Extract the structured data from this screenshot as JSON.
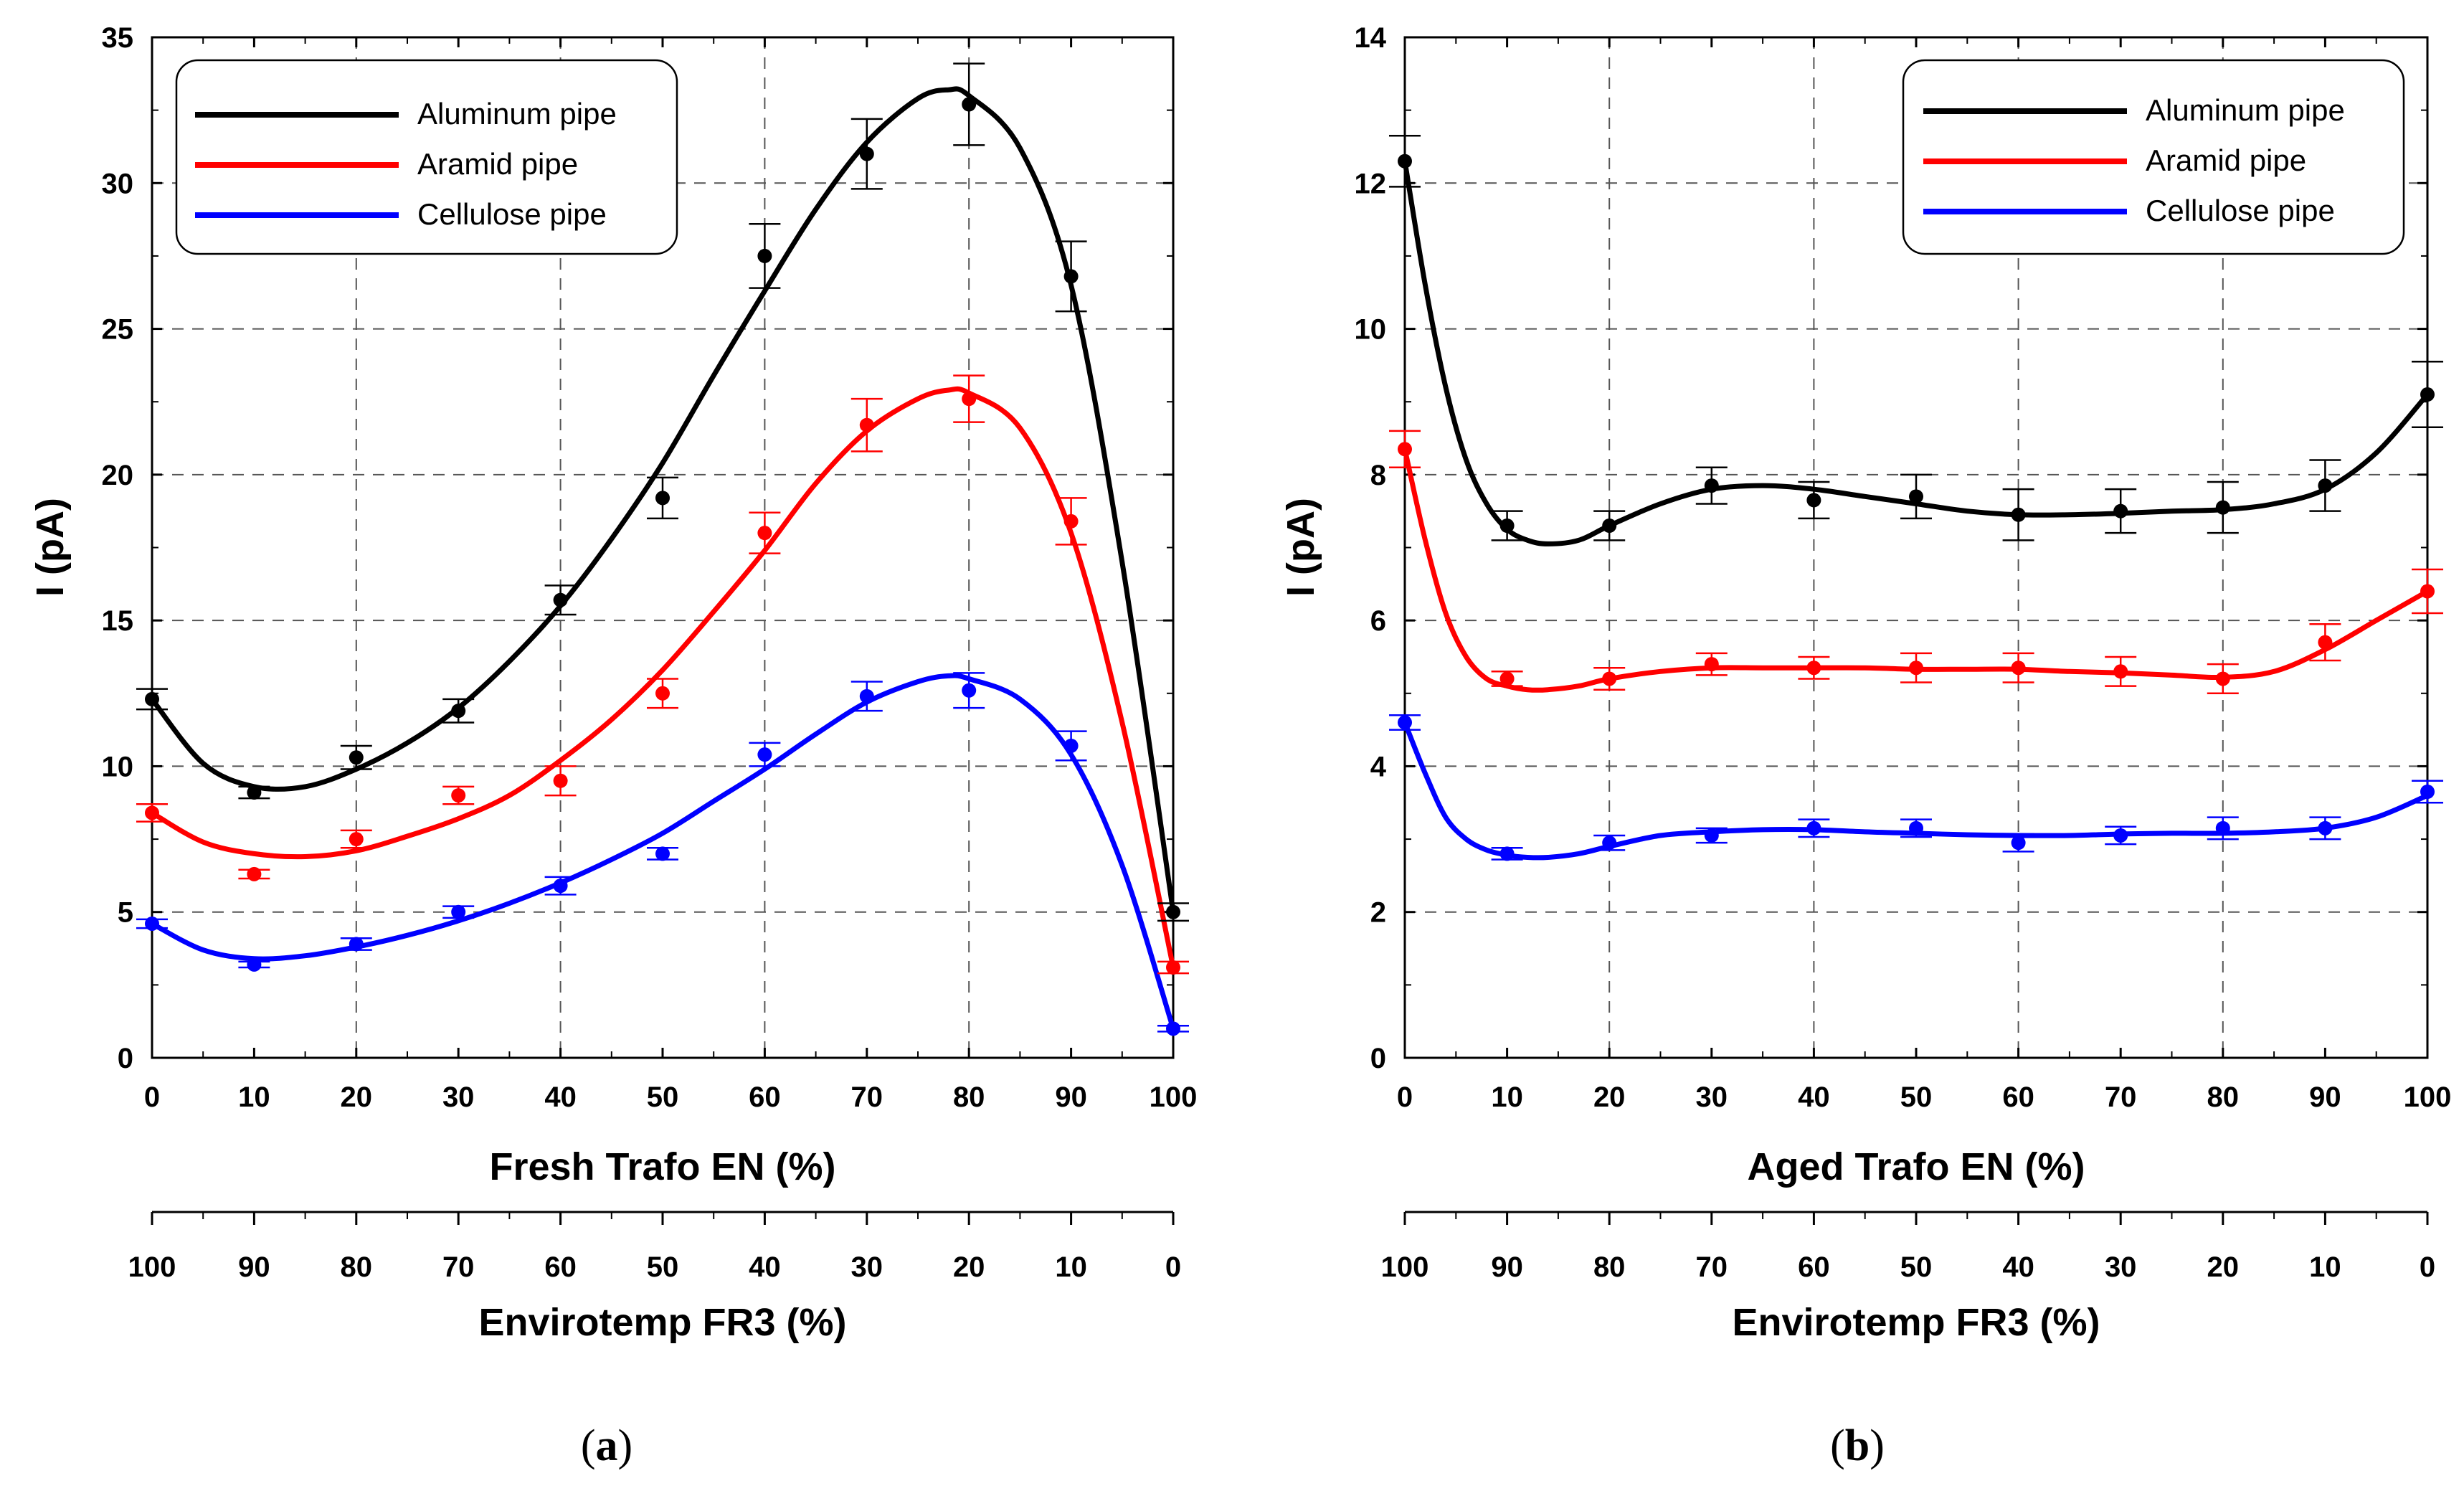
{
  "chart_data": [
    {
      "type": "line",
      "panel_label": "a",
      "xlabel": "Fresh Trafo EN (%)",
      "x2label": "Envirotemp FR3 (%)",
      "ylabel": "I (pA)",
      "x_ticks": [
        "0",
        "10",
        "20",
        "30",
        "40",
        "50",
        "60",
        "70",
        "80",
        "90",
        "100"
      ],
      "x2_ticks": [
        "100",
        "90",
        "80",
        "70",
        "60",
        "50",
        "40",
        "30",
        "20",
        "10",
        "0"
      ],
      "y_ticks": [
        "0",
        "5",
        "10",
        "15",
        "20",
        "25",
        "30",
        "35"
      ],
      "xlim": [
        0,
        100
      ],
      "ylim": [
        0,
        35
      ],
      "grid": true,
      "legend_position": "top-left",
      "x": [
        0,
        10,
        20,
        30,
        40,
        50,
        60,
        70,
        80,
        90,
        100
      ],
      "series": [
        {
          "name": "Aluminum pipe",
          "color": "#000000",
          "values": [
            12.3,
            9.1,
            10.3,
            11.9,
            15.7,
            19.2,
            27.5,
            31.0,
            32.7,
            26.8,
            5.0
          ],
          "errors": [
            0.35,
            0.2,
            0.4,
            0.4,
            0.5,
            0.7,
            1.1,
            1.2,
            1.4,
            1.2,
            0.3
          ],
          "fit_x": [
            0,
            5,
            10,
            15,
            20,
            25,
            30,
            35,
            40,
            45,
            50,
            55,
            60,
            65,
            70,
            75,
            78,
            80,
            85,
            90,
            95,
            100
          ],
          "fit_y": [
            12.3,
            10.1,
            9.3,
            9.3,
            9.9,
            10.8,
            12.0,
            13.6,
            15.5,
            17.8,
            20.4,
            23.4,
            26.3,
            29.1,
            31.4,
            32.9,
            33.2,
            33.0,
            31.2,
            26.5,
            17.0,
            5.0
          ]
        },
        {
          "name": "Aramid pipe",
          "color": "#ff0000",
          "values": [
            8.4,
            6.3,
            7.5,
            9.0,
            9.5,
            12.5,
            18.0,
            21.7,
            22.6,
            18.4,
            3.1
          ],
          "errors": [
            0.3,
            0.15,
            0.3,
            0.3,
            0.5,
            0.5,
            0.7,
            0.9,
            0.8,
            0.8,
            0.2
          ],
          "fit_x": [
            0,
            5,
            10,
            15,
            20,
            25,
            30,
            35,
            40,
            45,
            50,
            55,
            60,
            65,
            70,
            75,
            78,
            80,
            85,
            90,
            95,
            100
          ],
          "fit_y": [
            8.4,
            7.4,
            7.0,
            6.9,
            7.1,
            7.6,
            8.2,
            9.0,
            10.2,
            11.6,
            13.3,
            15.3,
            17.4,
            19.7,
            21.5,
            22.6,
            22.9,
            22.8,
            21.6,
            18.0,
            11.5,
            3.1
          ],
          "fit_note": ""
        },
        {
          "name": "Cellulose pipe",
          "color": "#0000ff",
          "values": [
            4.6,
            3.2,
            3.9,
            5.0,
            5.9,
            7.0,
            10.4,
            12.4,
            12.6,
            10.7,
            1.0
          ],
          "errors": [
            0.15,
            0.1,
            0.2,
            0.2,
            0.3,
            0.2,
            0.4,
            0.5,
            0.6,
            0.5,
            0.1
          ],
          "fit_x": [
            0,
            5,
            10,
            15,
            20,
            25,
            30,
            35,
            40,
            45,
            50,
            55,
            60,
            65,
            70,
            75,
            78,
            80,
            85,
            90,
            95,
            100
          ],
          "fit_y": [
            4.6,
            3.7,
            3.4,
            3.5,
            3.8,
            4.2,
            4.7,
            5.3,
            6.0,
            6.8,
            7.7,
            8.8,
            9.9,
            11.1,
            12.2,
            12.9,
            13.1,
            13.0,
            12.3,
            10.4,
            6.6,
            1.0
          ]
        }
      ]
    },
    {
      "type": "line",
      "panel_label": "b",
      "xlabel": "Aged Trafo EN (%)",
      "x2label": "Envirotemp FR3 (%)",
      "ylabel": "I (pA)",
      "x_ticks": [
        "0",
        "10",
        "20",
        "30",
        "40",
        "50",
        "60",
        "70",
        "80",
        "90",
        "100"
      ],
      "x2_ticks": [
        "100",
        "90",
        "80",
        "70",
        "60",
        "50",
        "40",
        "30",
        "20",
        "10",
        "0"
      ],
      "y_ticks": [
        "0",
        "2",
        "4",
        "6",
        "8",
        "10",
        "12",
        "14"
      ],
      "xlim": [
        0,
        100
      ],
      "ylim": [
        0,
        14
      ],
      "grid": true,
      "legend_position": "top-right",
      "x": [
        0,
        10,
        20,
        30,
        40,
        50,
        60,
        70,
        80,
        90,
        100
      ],
      "series": [
        {
          "name": "Aluminum pipe",
          "color": "#000000",
          "values": [
            12.3,
            7.3,
            7.3,
            7.85,
            7.65,
            7.7,
            7.45,
            7.5,
            7.55,
            7.85,
            9.1
          ],
          "errors": [
            0.35,
            0.2,
            0.2,
            0.25,
            0.25,
            0.3,
            0.35,
            0.3,
            0.35,
            0.35,
            0.45
          ],
          "fit_x": [
            0,
            2,
            4,
            6,
            8,
            10,
            12,
            14,
            17,
            20,
            25,
            30,
            35,
            40,
            45,
            50,
            55,
            60,
            65,
            70,
            75,
            80,
            85,
            90,
            95,
            100
          ],
          "fit_y": [
            12.3,
            10.6,
            9.2,
            8.2,
            7.6,
            7.25,
            7.1,
            7.05,
            7.1,
            7.3,
            7.6,
            7.8,
            7.85,
            7.8,
            7.7,
            7.6,
            7.5,
            7.45,
            7.45,
            7.47,
            7.5,
            7.52,
            7.6,
            7.8,
            8.3,
            9.1
          ]
        },
        {
          "name": "Aramid pipe",
          "color": "#ff0000",
          "values": [
            8.35,
            5.2,
            5.2,
            5.4,
            5.35,
            5.35,
            5.35,
            5.3,
            5.2,
            5.7,
            6.4
          ],
          "errors": [
            0.25,
            0.1,
            0.15,
            0.15,
            0.15,
            0.2,
            0.2,
            0.2,
            0.2,
            0.25,
            0.3
          ],
          "fit_x": [
            0,
            2,
            4,
            6,
            8,
            10,
            12,
            14,
            17,
            20,
            25,
            30,
            35,
            40,
            45,
            50,
            55,
            60,
            65,
            70,
            75,
            80,
            85,
            90,
            95,
            100
          ],
          "fit_y": [
            8.35,
            7.1,
            6.1,
            5.5,
            5.2,
            5.1,
            5.05,
            5.05,
            5.1,
            5.2,
            5.3,
            5.35,
            5.35,
            5.35,
            5.35,
            5.33,
            5.33,
            5.33,
            5.3,
            5.28,
            5.25,
            5.22,
            5.3,
            5.6,
            6.0,
            6.4
          ]
        },
        {
          "name": "Cellulose pipe",
          "color": "#0000ff",
          "values": [
            4.6,
            2.8,
            2.95,
            3.05,
            3.15,
            3.15,
            2.95,
            3.05,
            3.15,
            3.15,
            3.65
          ],
          "errors": [
            0.1,
            0.08,
            0.1,
            0.1,
            0.12,
            0.12,
            0.12,
            0.12,
            0.15,
            0.15,
            0.15
          ],
          "fit_x": [
            0,
            2,
            4,
            6,
            8,
            10,
            12,
            14,
            17,
            20,
            25,
            30,
            35,
            40,
            45,
            50,
            55,
            60,
            65,
            70,
            75,
            80,
            85,
            90,
            95,
            100
          ],
          "fit_y": [
            4.6,
            3.9,
            3.3,
            3.0,
            2.85,
            2.78,
            2.75,
            2.75,
            2.8,
            2.9,
            3.05,
            3.1,
            3.13,
            3.13,
            3.1,
            3.08,
            3.06,
            3.05,
            3.05,
            3.07,
            3.08,
            3.08,
            3.1,
            3.15,
            3.3,
            3.6
          ]
        }
      ]
    }
  ],
  "captions": [
    {
      "open": "(",
      "letter": "a",
      "close": ")"
    },
    {
      "open": "(",
      "letter": "b",
      "close": ")"
    }
  ]
}
